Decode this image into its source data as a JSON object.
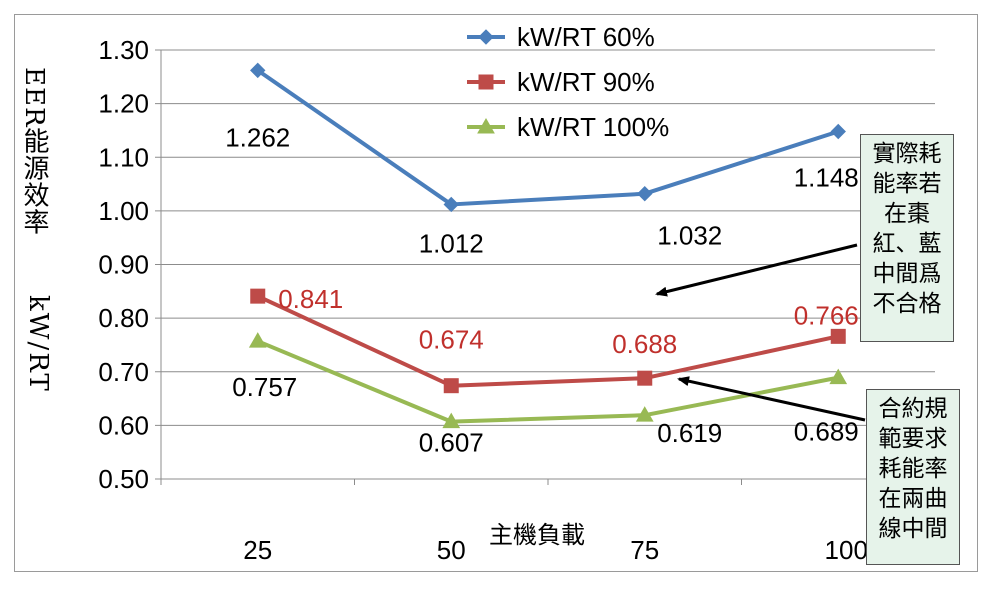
{
  "chart_data": {
    "type": "line",
    "categories": [
      "25",
      "50",
      "75",
      "100"
    ],
    "xlabel": "主機負載",
    "ylabel": {
      "line1": "EER能源效率",
      "line2": "kW/RT"
    },
    "ylim": [
      0.5,
      1.3
    ],
    "yticks": [
      "0.50",
      "0.60",
      "0.70",
      "0.80",
      "0.90",
      "1.00",
      "1.10",
      "1.20",
      "1.30"
    ],
    "grid": true,
    "legend_position": "top-center",
    "series": [
      {
        "name": "kW/RT 60%",
        "values": [
          1.262,
          1.012,
          1.032,
          1.148
        ],
        "labels": [
          "1.262",
          "1.012",
          "1.032",
          "1.148"
        ],
        "color": "#4a7ebb",
        "marker": "diamond",
        "label_color": "#000000"
      },
      {
        "name": "kW/RT 90%",
        "values": [
          0.841,
          0.674,
          0.688,
          0.766
        ],
        "labels": [
          "0.841",
          "0.674",
          "0.688",
          "0.766"
        ],
        "color": "#be4b48",
        "marker": "square",
        "label_color": "#c0302c"
      },
      {
        "name": "kW/RT 100%",
        "values": [
          0.757,
          0.607,
          0.619,
          0.689
        ],
        "labels": [
          "0.757",
          "0.607",
          "0.619",
          "0.689"
        ],
        "color": "#98b954",
        "marker": "triangle",
        "label_color": "#000000"
      }
    ]
  },
  "annotations": {
    "actual": [
      "實際耗",
      "能率若",
      "在棗",
      "紅、藍",
      "中間爲",
      "不合格"
    ],
    "contract": [
      "合約規",
      "範要求",
      "耗能率",
      "在兩曲",
      "線中間"
    ]
  }
}
